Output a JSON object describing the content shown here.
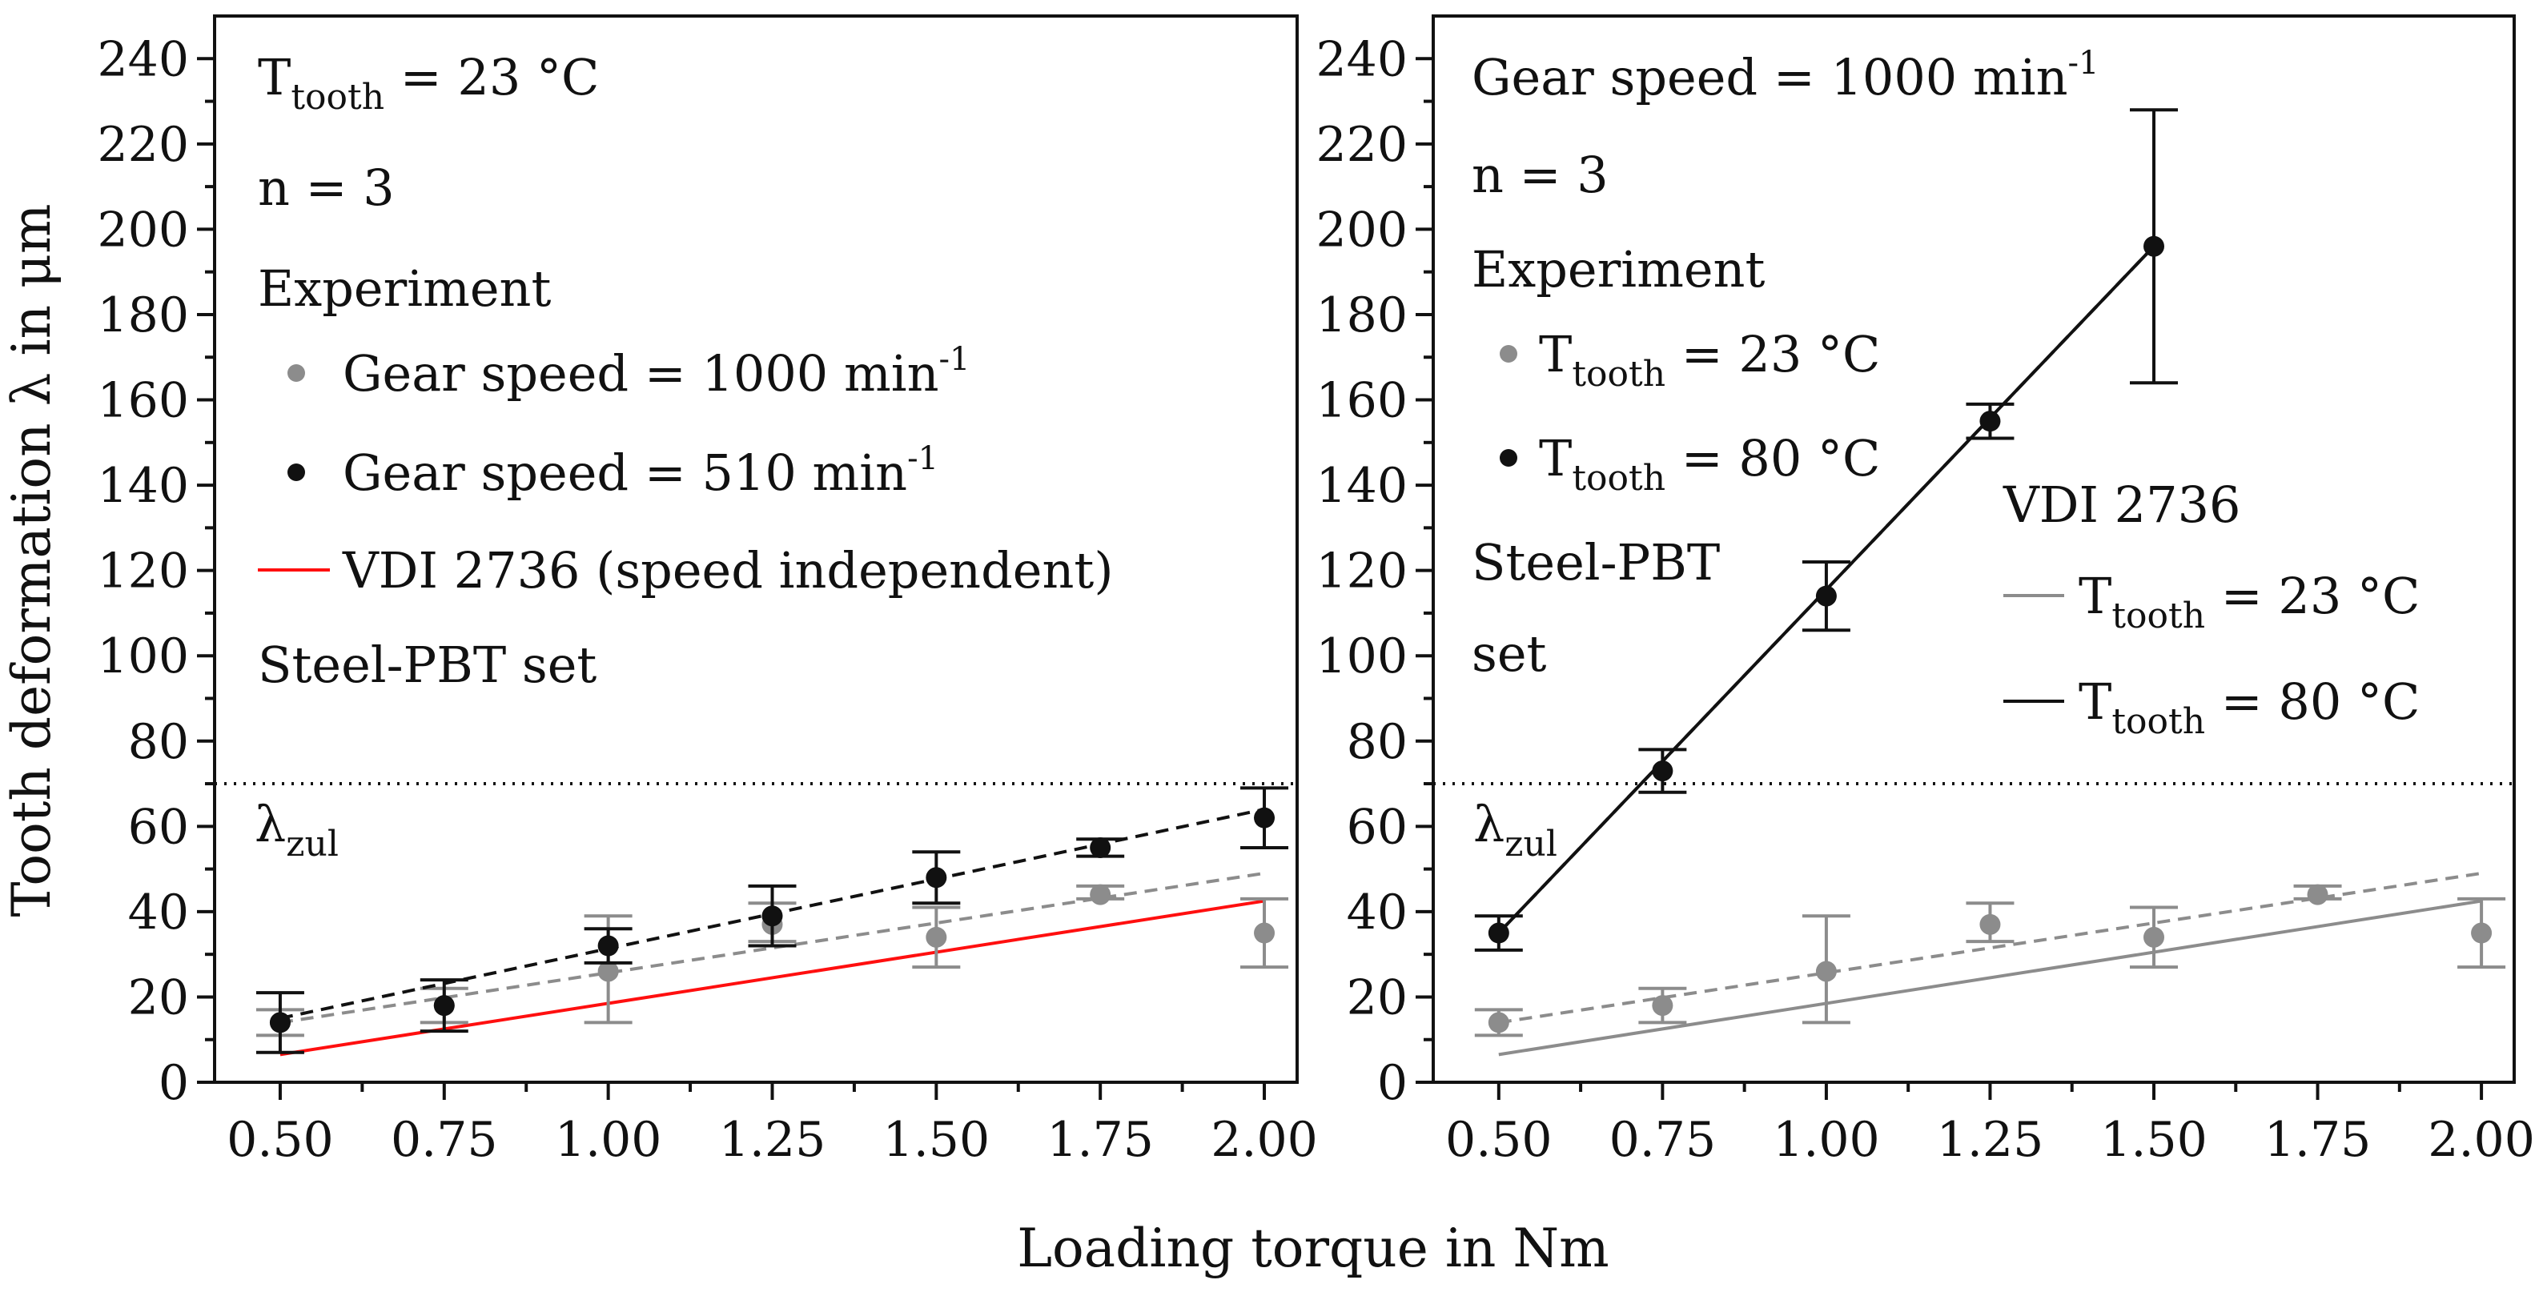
{
  "figure": {
    "ylabel": "Tooth deformation λ in μm",
    "xlabel": "Loading torque in Nm"
  },
  "colors": {
    "black": "#111111",
    "gray": "#8c8c8c",
    "red": "#ff0f0f"
  },
  "chart_data": [
    {
      "type": "scatter",
      "xlim": [
        0.4,
        2.05
      ],
      "ylim": [
        0,
        250
      ],
      "xticks": [
        "0.50",
        "0.75",
        "1.00",
        "1.25",
        "1.50",
        "1.75",
        "2.00"
      ],
      "yticks": [
        "0",
        "20",
        "40",
        "60",
        "80",
        "100",
        "120",
        "140",
        "160",
        "180",
        "200",
        "220",
        "240"
      ],
      "header": {
        "t_prefix": "T",
        "t_sub": "tooth",
        "t_suffix": " = 23 °C",
        "n": "n = 3",
        "experiment": "Experiment",
        "set": "Steel-PBT set"
      },
      "series": [
        {
          "name": "Gear speed = 1000 min",
          "legend_sup": "-1",
          "color_key": "gray",
          "x": [
            0.5,
            0.75,
            1.0,
            1.25,
            1.5,
            1.75,
            2.0
          ],
          "y": [
            14,
            18,
            26,
            37,
            34,
            44,
            35
          ],
          "err_low": [
            3,
            4,
            12,
            4,
            7,
            1,
            8
          ],
          "err_high": [
            3,
            4,
            13,
            5,
            7,
            2,
            8
          ],
          "fit": [
            14,
            49
          ],
          "fit_style": "dashed"
        },
        {
          "name": "Gear speed = 510 min",
          "legend_sup": "-1",
          "color_key": "black",
          "x": [
            0.5,
            0.75,
            1.0,
            1.25,
            1.5,
            1.75,
            2.0
          ],
          "y": [
            14,
            18,
            32,
            39,
            48,
            55,
            62
          ],
          "err_low": [
            7,
            6,
            4,
            7,
            6,
            2,
            7
          ],
          "err_high": [
            7,
            6,
            4,
            7,
            6,
            2,
            7
          ],
          "fit": [
            15,
            64
          ],
          "fit_style": "dashed"
        }
      ],
      "reference_lines": [
        {
          "name": "VDI 2736 (speed independent)",
          "color_key": "red",
          "x": [
            0.5,
            2.0
          ],
          "y": [
            6.5,
            42.5
          ]
        }
      ],
      "threshold": {
        "y": 70,
        "label": "λ",
        "label_sub": "zul"
      }
    },
    {
      "type": "scatter",
      "xlim": [
        0.4,
        2.05
      ],
      "ylim": [
        0,
        250
      ],
      "xticks": [
        "0.50",
        "0.75",
        "1.00",
        "1.25",
        "1.50",
        "1.75",
        "2.00"
      ],
      "yticks": [
        "0",
        "20",
        "40",
        "60",
        "80",
        "100",
        "120",
        "140",
        "160",
        "180",
        "200",
        "220",
        "240"
      ],
      "header": {
        "speed": "Gear speed = 1000 min",
        "speed_sup": "-1",
        "n": "n = 3",
        "experiment": "Experiment",
        "set_line1": "Steel-PBT",
        "set_line2": "set",
        "vdi_title": "VDI 2736"
      },
      "series": [
        {
          "name_prefix": "T",
          "name_sub": "tooth",
          "name_suffix": " = 23 °C",
          "color_key": "gray",
          "x": [
            0.5,
            0.75,
            1.0,
            1.25,
            1.5,
            1.75,
            2.0
          ],
          "y": [
            14,
            18,
            26,
            37,
            34,
            44,
            35
          ],
          "err_low": [
            3,
            4,
            12,
            4,
            7,
            1,
            8
          ],
          "err_high": [
            3,
            4,
            13,
            5,
            7,
            2,
            8
          ],
          "fit": [
            14,
            49
          ],
          "fit_style": "dashed"
        },
        {
          "name_prefix": "T",
          "name_sub": "tooth",
          "name_suffix": " = 80 °C",
          "color_key": "black",
          "x": [
            0.5,
            0.75,
            1.0,
            1.25,
            1.5
          ],
          "y": [
            35,
            73,
            114,
            155,
            196
          ],
          "err_low": [
            4,
            5,
            8,
            4,
            32
          ],
          "err_high": [
            4,
            5,
            8,
            4,
            32
          ],
          "fit": [
            35,
            196
          ],
          "fit_x": [
            0.5,
            1.5
          ],
          "fit_style": "dashed"
        }
      ],
      "reference_lines": [
        {
          "name_prefix": "T",
          "name_sub": "tooth",
          "name_suffix": " = 23 °C",
          "color_key": "gray",
          "x": [
            0.5,
            2.0
          ],
          "y": [
            6.5,
            42.5
          ]
        },
        {
          "name_prefix": "T",
          "name_sub": "tooth",
          "name_suffix": " = 80 °C",
          "color_key": "black",
          "x": [
            0.5,
            1.5
          ],
          "y": [
            35,
            196
          ]
        }
      ],
      "threshold": {
        "y": 70,
        "label": "λ",
        "label_sub": "zul"
      }
    }
  ]
}
